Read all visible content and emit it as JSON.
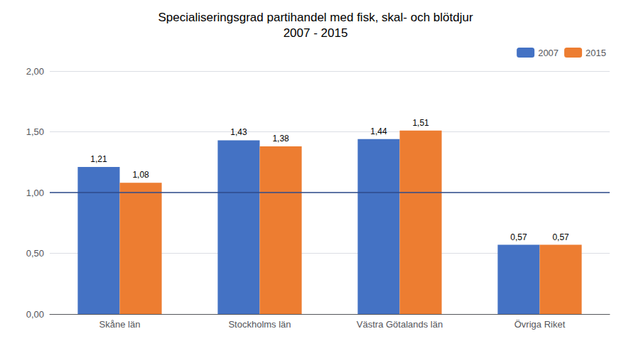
{
  "chart_data": {
    "type": "bar",
    "title": "Specialiseringsgrad partihandel med fisk, skal- och blötdjur\n2007 - 2015",
    "categories": [
      "Skåne län",
      "Stockholms län",
      "Västra Götalands län",
      "Övriga Riket"
    ],
    "series": [
      {
        "name": "2007",
        "color": "#4472C4",
        "values": [
          1.21,
          1.43,
          1.44,
          0.57
        ],
        "value_labels": [
          "1,21",
          "1,43",
          "1,44",
          "0,57"
        ]
      },
      {
        "name": "2015",
        "color": "#ED7D31",
        "values": [
          1.08,
          1.38,
          1.51,
          0.57
        ],
        "value_labels": [
          "1,08",
          "1,38",
          "1,51",
          "0,57"
        ]
      }
    ],
    "ylim": [
      0,
      2.0
    ],
    "yticks": [
      {
        "value": 0.0,
        "label": "0,00"
      },
      {
        "value": 0.5,
        "label": "0,50"
      },
      {
        "value": 1.0,
        "label": "1,00"
      },
      {
        "value": 1.5,
        "label": "1,50"
      },
      {
        "value": 2.0,
        "label": "2,00"
      }
    ],
    "hlines": [
      {
        "y": 1.0,
        "color": "#2E4B8B"
      }
    ],
    "data_labels": true,
    "grid": true,
    "legend": "upper right"
  }
}
